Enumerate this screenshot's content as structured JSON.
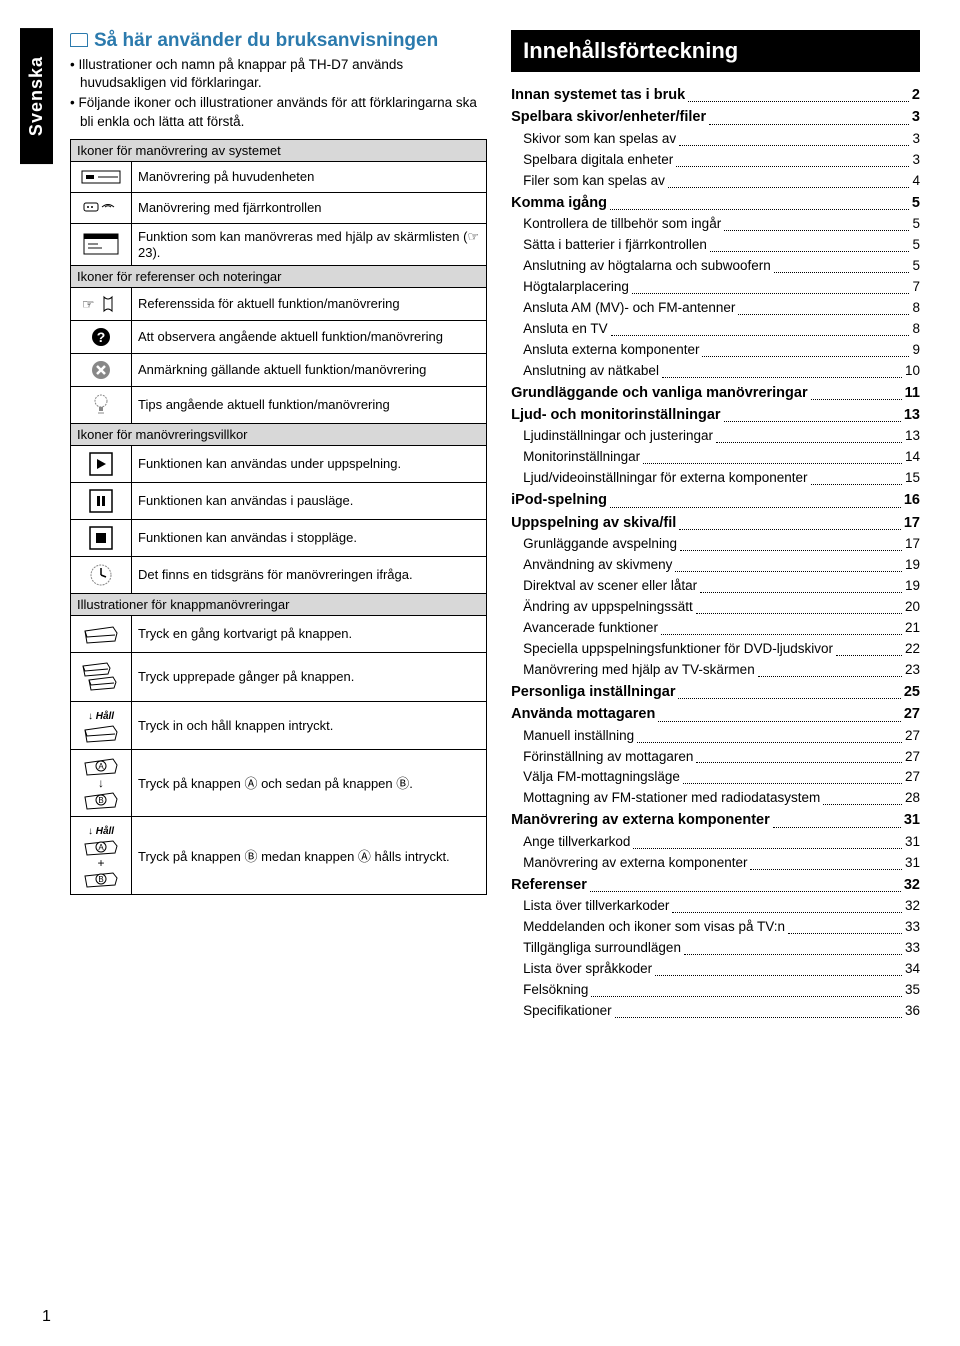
{
  "tab": "Svenska",
  "page_number": "1",
  "left": {
    "title": "Så här använder du bruksanvisningen",
    "intro": [
      "Illustrationer och namn på knappar på TH-D7 används huvudsakligen vid förklaringar.",
      "Följande ikoner och illustrationer används för att förklaringarna ska bli enkla och lätta att förstå."
    ],
    "groups": [
      {
        "header": "Ikoner för manövrering av systemet",
        "rows": [
          {
            "icon": "main-unit-icon",
            "text": "Manövrering på huvudenheten"
          },
          {
            "icon": "remote-icon",
            "text": "Manövrering med fjärrkontrollen"
          },
          {
            "icon": "screen-bar-icon",
            "text": "Funktion som kan manövreras med hjälp av skärmlisten (☞ 23)."
          }
        ]
      },
      {
        "header": "Ikoner för referenser och noteringar",
        "rows": [
          {
            "icon": "ref-page-icon",
            "text": "Referenssida för aktuell funktion/manövrering"
          },
          {
            "icon": "observe-icon",
            "text": "Att observera angående aktuell funktion/manövrering"
          },
          {
            "icon": "note-icon",
            "text": "Anmärkning gällande aktuell funktion/manövrering"
          },
          {
            "icon": "tip-icon",
            "text": "Tips angående aktuell funktion/manövrering"
          }
        ]
      },
      {
        "header": "Ikoner för manövreringsvillkor",
        "rows": [
          {
            "icon": "play-icon",
            "text": "Funktionen kan användas under uppspelning."
          },
          {
            "icon": "pause-icon",
            "text": "Funktionen kan användas i pausläge."
          },
          {
            "icon": "stop-icon",
            "text": "Funktionen kan användas i stoppläge."
          },
          {
            "icon": "clock-icon",
            "text": "Det finns en tidsgräns för manövreringen ifråga."
          }
        ]
      },
      {
        "header": "Illustrationer för knappmanövreringar",
        "rows": [
          {
            "icon": "press-once-icon",
            "text": "Tryck en gång kortvarigt på knappen."
          },
          {
            "icon": "press-repeat-icon",
            "text": "Tryck upprepade gånger på knappen."
          },
          {
            "icon": "press-hold-icon",
            "hold": "Håll",
            "text": "Tryck in och håll knappen intryckt."
          },
          {
            "icon": "press-ab-icon",
            "text": "Tryck på knappen Ⓐ och sedan på knappen Ⓑ."
          },
          {
            "icon": "press-hold-ab-icon",
            "hold": "Håll",
            "text": "Tryck på knappen Ⓑ medan knappen Ⓐ hålls intryckt."
          }
        ]
      }
    ]
  },
  "right": {
    "header": "Innehållsförteckning",
    "items": [
      {
        "lvl": 0,
        "label": "Innan systemet tas i bruk",
        "pg": "2"
      },
      {
        "lvl": 0,
        "label": "Spelbara skivor/enheter/filer",
        "pg": "3"
      },
      {
        "lvl": 1,
        "label": "Skivor som kan spelas av",
        "pg": "3"
      },
      {
        "lvl": 1,
        "label": "Spelbara digitala enheter",
        "pg": "3"
      },
      {
        "lvl": 1,
        "label": "Filer som kan spelas av",
        "pg": "4"
      },
      {
        "lvl": 0,
        "label": "Komma igång",
        "pg": "5"
      },
      {
        "lvl": 1,
        "label": "Kontrollera de tillbehör som ingår",
        "pg": "5"
      },
      {
        "lvl": 1,
        "label": "Sätta i batterier i fjärrkontrollen",
        "pg": "5"
      },
      {
        "lvl": 1,
        "label": "Anslutning av högtalarna och subwoofern",
        "pg": "5"
      },
      {
        "lvl": 1,
        "label": "Högtalarplacering",
        "pg": "7"
      },
      {
        "lvl": 1,
        "label": "Ansluta AM (MV)- och FM-antenner",
        "pg": "8"
      },
      {
        "lvl": 1,
        "label": "Ansluta en TV",
        "pg": "8"
      },
      {
        "lvl": 1,
        "label": "Ansluta externa komponenter",
        "pg": "9"
      },
      {
        "lvl": 1,
        "label": "Anslutning av nätkabel",
        "pg": "10"
      },
      {
        "lvl": 0,
        "label": "Grundläggande och vanliga manövreringar",
        "pg": "11"
      },
      {
        "lvl": 0,
        "label": "Ljud- och monitorinställningar",
        "pg": "13"
      },
      {
        "lvl": 1,
        "label": "Ljudinställningar och justeringar",
        "pg": "13"
      },
      {
        "lvl": 1,
        "label": "Monitorinställningar",
        "pg": "14"
      },
      {
        "lvl": 1,
        "label": "Ljud/videoinställningar för externa komponenter",
        "pg": "15"
      },
      {
        "lvl": 0,
        "label": "iPod-spelning",
        "pg": "16"
      },
      {
        "lvl": 0,
        "label": "Uppspelning av skiva/fil",
        "pg": "17"
      },
      {
        "lvl": 1,
        "label": "Grunläggande avspelning",
        "pg": "17"
      },
      {
        "lvl": 1,
        "label": "Användning av skivmeny",
        "pg": "19"
      },
      {
        "lvl": 1,
        "label": "Direktval av scener eller låtar",
        "pg": "19"
      },
      {
        "lvl": 1,
        "label": "Ändring av uppspelningssätt",
        "pg": "20"
      },
      {
        "lvl": 1,
        "label": "Avancerade funktioner",
        "pg": "21"
      },
      {
        "lvl": 1,
        "label": "Speciella uppspelningsfunktioner för DVD-ljudskivor",
        "pg": "22"
      },
      {
        "lvl": 1,
        "label": "Manövrering med hjälp av TV-skärmen",
        "pg": "23"
      },
      {
        "lvl": 0,
        "label": "Personliga inställningar",
        "pg": "25"
      },
      {
        "lvl": 0,
        "label": "Använda mottagaren",
        "pg": "27"
      },
      {
        "lvl": 1,
        "label": "Manuell inställning",
        "pg": "27"
      },
      {
        "lvl": 1,
        "label": "Förinställning av mottagaren",
        "pg": "27"
      },
      {
        "lvl": 1,
        "label": "Välja FM-mottagningsläge",
        "pg": "27"
      },
      {
        "lvl": 1,
        "label": "Mottagning av FM-stationer med radiodatasystem",
        "pg": "28"
      },
      {
        "lvl": 0,
        "label": "Manövrering av externa komponenter",
        "pg": "31"
      },
      {
        "lvl": 1,
        "label": "Ange tillverkarkod",
        "pg": "31"
      },
      {
        "lvl": 1,
        "label": "Manövrering av externa komponenter",
        "pg": "31"
      },
      {
        "lvl": 0,
        "label": "Referenser",
        "pg": "32"
      },
      {
        "lvl": 1,
        "label": "Lista över tillverkarkoder",
        "pg": "32"
      },
      {
        "lvl": 1,
        "label": "Meddelanden och ikoner som visas på TV:n",
        "pg": "33"
      },
      {
        "lvl": 1,
        "label": "Tillgängliga surroundlägen",
        "pg": "33"
      },
      {
        "lvl": 1,
        "label": "Lista över språkkoder",
        "pg": "34"
      },
      {
        "lvl": 1,
        "label": "Felsökning",
        "pg": "35"
      },
      {
        "lvl": 1,
        "label": "Specifikationer",
        "pg": "36"
      }
    ]
  }
}
